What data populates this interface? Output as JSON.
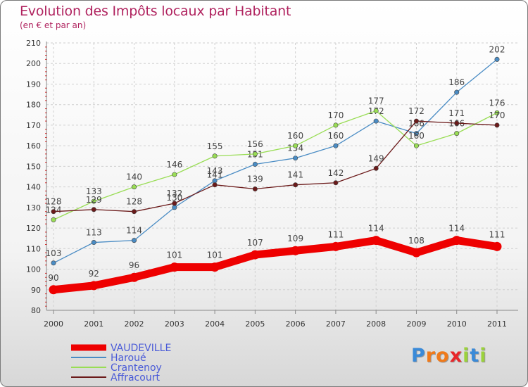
{
  "title": "Evolution des Impôts locaux par Habitant",
  "subtitle": "(en € et par an)",
  "logo": {
    "letters": [
      "P",
      "r",
      "o",
      "x",
      "i",
      "t",
      "i"
    ],
    "colors": [
      "#3a8ad8",
      "#f07a1a",
      "#f07a1a",
      "#e8262a",
      "#9bd23c",
      "#3a8ad8",
      "#9bd23c"
    ]
  },
  "chart_data": {
    "type": "line",
    "title": "Evolution des Impôts locaux par Habitant",
    "subtitle": "(en € et par an)",
    "categories": [
      "2000",
      "2001",
      "2002",
      "2003",
      "2004",
      "2005",
      "2006",
      "2007",
      "2008",
      "2009",
      "2010",
      "2011"
    ],
    "ylim": [
      80,
      210
    ],
    "yticks": [
      80,
      90,
      100,
      110,
      120,
      130,
      140,
      150,
      160,
      170,
      180,
      190,
      200,
      210
    ],
    "grid": true,
    "legend": "bottom-left",
    "series": [
      {
        "name": "VAUDEVILLE",
        "color": "#ee0000",
        "values": [
          90,
          92,
          96,
          101,
          101,
          107,
          109,
          111,
          114,
          108,
          114,
          111
        ],
        "labels": [
          "90",
          "92",
          "96",
          "101",
          "101",
          "107",
          "109",
          "111",
          "114",
          "108",
          "114",
          "111"
        ]
      },
      {
        "name": "Haroué",
        "color": "#4a8cc4",
        "values": [
          103,
          113,
          114,
          130,
          143,
          151,
          154,
          160,
          172,
          166,
          186,
          202
        ],
        "labels": [
          "103",
          "113",
          "114",
          "130",
          "143",
          "151",
          "154",
          "160",
          "172",
          "166",
          "186",
          "202"
        ]
      },
      {
        "name": "Crantenoy",
        "color": "#99dd55",
        "values": [
          124,
          133,
          140,
          146,
          155,
          156,
          160,
          170,
          177,
          160,
          166,
          176
        ],
        "labels": [
          "124",
          "133",
          "140",
          "146",
          "155",
          "156",
          "160",
          "170",
          "177",
          "160",
          "166",
          "176"
        ]
      },
      {
        "name": "Affracourt",
        "color": "#6b1a1a",
        "values": [
          128,
          129,
          128,
          132,
          141,
          139,
          141,
          142,
          149,
          172,
          171,
          170
        ],
        "labels": [
          "128",
          "129",
          "128",
          "132",
          "141",
          "139",
          "141",
          "142",
          "149",
          "172",
          "171",
          "170"
        ]
      }
    ]
  }
}
